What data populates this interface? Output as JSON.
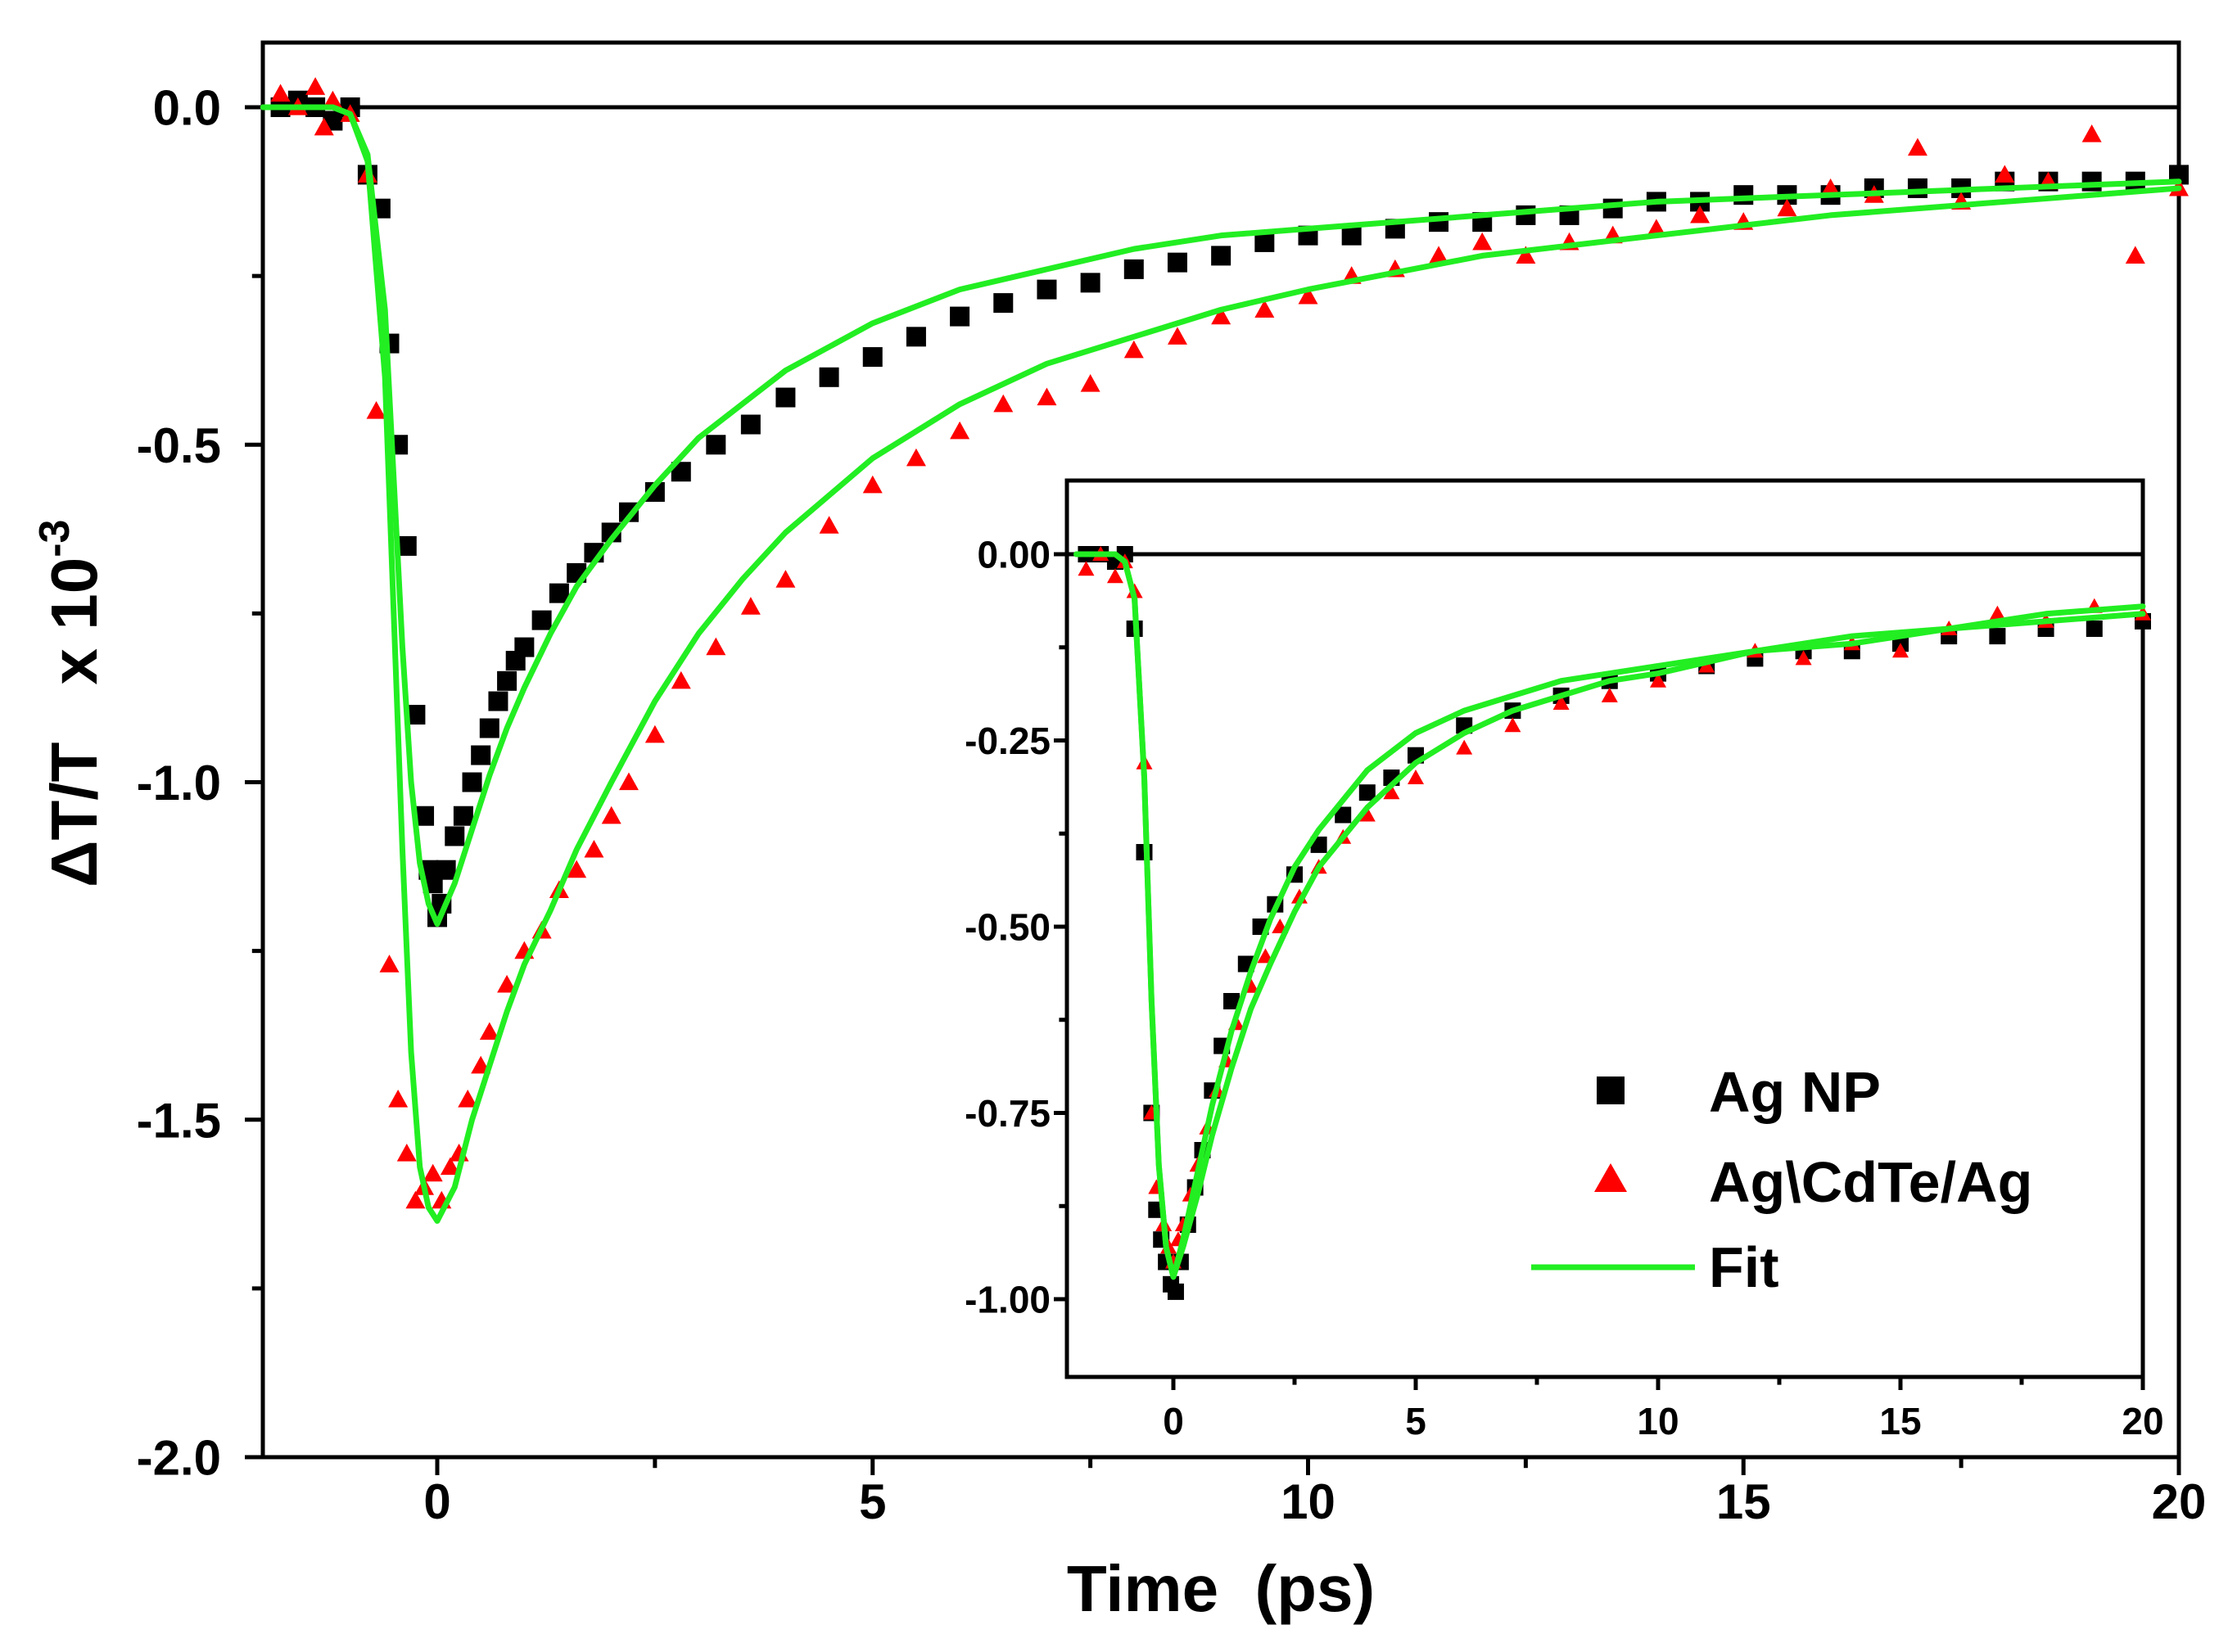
{
  "chart_data": [
    {
      "id": "main",
      "type": "scatter",
      "xlabel": "Time  (ps)",
      "ylabel_main": "ΔT/T",
      "ylabel_factor_base": "x 10",
      "ylabel_factor_exp": "-3",
      "xlim": [
        -2,
        20
      ],
      "ylim": [
        -2.0,
        0.13
      ],
      "xticks": [
        0,
        5,
        10,
        15,
        20
      ],
      "xtick_labels": [
        "0",
        "5",
        "10",
        "15",
        "20"
      ],
      "yticks": [
        0.0,
        -0.5,
        -1.0,
        -1.5,
        -2.0
      ],
      "ytick_labels": [
        "0.0",
        "-0.5",
        "-1.0",
        "-1.5",
        "-2.0"
      ],
      "zero_line": 0,
      "series": [
        {
          "name": "Ag NP",
          "marker": "square",
          "color": "#000000",
          "x": [
            -1.8,
            -1.6,
            -1.4,
            -1.2,
            -1.0,
            -0.8,
            -0.65,
            -0.55,
            -0.45,
            -0.35,
            -0.25,
            -0.15,
            -0.1,
            -0.05,
            0,
            0.05,
            0.1,
            0.2,
            0.3,
            0.4,
            0.5,
            0.6,
            0.7,
            0.8,
            0.9,
            1.0,
            1.2,
            1.4,
            1.6,
            1.8,
            2.0,
            2.2,
            2.5,
            2.8,
            3.2,
            3.6,
            4.0,
            4.5,
            5.0,
            5.5,
            6.0,
            6.5,
            7.0,
            7.5,
            8.0,
            8.5,
            9.0,
            9.5,
            10.0,
            10.5,
            11.0,
            11.5,
            12.0,
            12.5,
            13.0,
            13.5,
            14.0,
            14.5,
            15.0,
            15.5,
            16.0,
            16.5,
            17.0,
            17.5,
            18.0,
            18.5,
            19.0,
            19.5,
            20.0
          ],
          "y": [
            0.0,
            0.01,
            0.0,
            -0.02,
            0.0,
            -0.1,
            -0.15,
            -0.35,
            -0.5,
            -0.65,
            -0.9,
            -1.05,
            -1.13,
            -1.15,
            -1.2,
            -1.18,
            -1.13,
            -1.08,
            -1.05,
            -1.0,
            -0.96,
            -0.92,
            -0.88,
            -0.85,
            -0.82,
            -0.8,
            -0.76,
            -0.72,
            -0.69,
            -0.66,
            -0.63,
            -0.6,
            -0.57,
            -0.54,
            -0.5,
            -0.47,
            -0.43,
            -0.4,
            -0.37,
            -0.34,
            -0.31,
            -0.29,
            -0.27,
            -0.26,
            -0.24,
            -0.23,
            -0.22,
            -0.2,
            -0.19,
            -0.19,
            -0.18,
            -0.17,
            -0.17,
            -0.16,
            -0.16,
            -0.15,
            -0.14,
            -0.14,
            -0.13,
            -0.13,
            -0.13,
            -0.12,
            -0.12,
            -0.12,
            -0.11,
            -0.11,
            -0.11,
            -0.11,
            -0.1
          ]
        },
        {
          "name": "Ag\\CdTe/Ag",
          "marker": "triangle",
          "color": "#ff0000",
          "x": [
            -1.8,
            -1.6,
            -1.4,
            -1.3,
            -1.2,
            -1.0,
            -0.8,
            -0.7,
            -0.55,
            -0.45,
            -0.35,
            -0.25,
            -0.15,
            -0.05,
            0.05,
            0.15,
            0.25,
            0.35,
            0.5,
            0.6,
            0.8,
            1.0,
            1.2,
            1.4,
            1.6,
            1.8,
            2.0,
            2.2,
            2.5,
            2.8,
            3.2,
            3.6,
            4.0,
            4.5,
            5.0,
            5.5,
            6.0,
            6.5,
            7.0,
            7.5,
            8.0,
            8.5,
            9.0,
            9.5,
            10.0,
            10.5,
            11.0,
            11.5,
            12.0,
            12.5,
            13.0,
            13.5,
            14.0,
            14.5,
            15.0,
            15.5,
            16.0,
            16.5,
            17.0,
            17.5,
            18.0,
            18.5,
            19.0,
            19.5,
            20.0
          ],
          "y": [
            0.02,
            0.0,
            0.03,
            -0.03,
            0.01,
            -0.01,
            -0.1,
            -0.45,
            -1.27,
            -1.47,
            -1.55,
            -1.62,
            -1.6,
            -1.58,
            -1.62,
            -1.57,
            -1.55,
            -1.47,
            -1.42,
            -1.37,
            -1.3,
            -1.25,
            -1.22,
            -1.16,
            -1.13,
            -1.1,
            -1.05,
            -1.0,
            -0.93,
            -0.85,
            -0.8,
            -0.74,
            -0.7,
            -0.62,
            -0.56,
            -0.52,
            -0.48,
            -0.44,
            -0.43,
            -0.41,
            -0.36,
            -0.34,
            -0.31,
            -0.3,
            -0.28,
            -0.25,
            -0.24,
            -0.22,
            -0.2,
            -0.22,
            -0.2,
            -0.19,
            -0.18,
            -0.16,
            -0.17,
            -0.15,
            -0.12,
            -0.13,
            -0.06,
            -0.14,
            -0.1,
            -0.11,
            -0.04,
            -0.22,
            -0.12
          ]
        },
        {
          "name": "Fit Ag NP",
          "marker": "line",
          "color": "#22ee22",
          "x": [
            -2,
            -1.2,
            -1.0,
            -0.8,
            -0.6,
            -0.5,
            -0.4,
            -0.3,
            -0.2,
            -0.1,
            0,
            0.2,
            0.4,
            0.6,
            0.8,
            1.0,
            1.3,
            1.6,
            2.0,
            2.5,
            3.0,
            3.5,
            4.0,
            5.0,
            6.0,
            7.0,
            8.0,
            9.0,
            10.0,
            12.0,
            14.0,
            16.0,
            18.0,
            20.0
          ],
          "y": [
            0.0,
            0.0,
            -0.01,
            -0.07,
            -0.3,
            -0.55,
            -0.8,
            -1.0,
            -1.12,
            -1.18,
            -1.21,
            -1.15,
            -1.07,
            -0.99,
            -0.92,
            -0.86,
            -0.78,
            -0.71,
            -0.64,
            -0.56,
            -0.49,
            -0.44,
            -0.39,
            -0.32,
            -0.27,
            -0.24,
            -0.21,
            -0.19,
            -0.18,
            -0.16,
            -0.14,
            -0.13,
            -0.12,
            -0.11
          ]
        },
        {
          "name": "Fit Ag\\CdTe/Ag",
          "marker": "line",
          "color": "#22ee22",
          "x": [
            -2,
            -1.2,
            -1.0,
            -0.8,
            -0.6,
            -0.5,
            -0.4,
            -0.3,
            -0.2,
            -0.1,
            0,
            0.2,
            0.4,
            0.6,
            0.8,
            1.0,
            1.3,
            1.6,
            2.0,
            2.5,
            3.0,
            3.5,
            4.0,
            5.0,
            6.0,
            7.0,
            8.0,
            9.0,
            10.0,
            12.0,
            14.0,
            16.0,
            18.0,
            20.0
          ],
          "y": [
            0.0,
            0.0,
            -0.01,
            -0.08,
            -0.4,
            -0.75,
            -1.1,
            -1.4,
            -1.57,
            -1.63,
            -1.65,
            -1.6,
            -1.5,
            -1.42,
            -1.34,
            -1.27,
            -1.19,
            -1.1,
            -1.0,
            -0.88,
            -0.78,
            -0.7,
            -0.63,
            -0.52,
            -0.44,
            -0.38,
            -0.34,
            -0.3,
            -0.27,
            -0.22,
            -0.19,
            -0.16,
            -0.14,
            -0.12
          ]
        }
      ]
    },
    {
      "id": "inset",
      "type": "scatter",
      "xlim": [
        -2,
        20
      ],
      "ylim": [
        -1.1,
        0.05
      ],
      "xticks": [
        0,
        5,
        10,
        15,
        20
      ],
      "xtick_labels": [
        "0",
        "5",
        "10",
        "15",
        "20"
      ],
      "yticks": [
        0.0,
        -0.25,
        -0.5,
        -0.75,
        -1.0
      ],
      "ytick_labels": [
        "0.00",
        "-0.25",
        "-0.50",
        "-0.75",
        "-1.00"
      ],
      "zero_line": 0,
      "series": [
        {
          "name": "Ag NP",
          "marker": "square",
          "color": "#000000",
          "x": [
            -1.8,
            -1.5,
            -1.2,
            -1.0,
            -0.8,
            -0.6,
            -0.45,
            -0.35,
            -0.25,
            -0.15,
            -0.05,
            0.05,
            0.15,
            0.3,
            0.45,
            0.6,
            0.8,
            1.0,
            1.2,
            1.5,
            1.8,
            2.1,
            2.5,
            3.0,
            3.5,
            4.0,
            4.5,
            5.0,
            6.0,
            7.0,
            8.0,
            9.0,
            10.0,
            11.0,
            12.0,
            13.0,
            14.0,
            15.0,
            16.0,
            17.0,
            18.0,
            19.0,
            20.0
          ],
          "y": [
            0.0,
            0.0,
            -0.01,
            0.0,
            -0.1,
            -0.4,
            -0.75,
            -0.88,
            -0.92,
            -0.95,
            -0.98,
            -0.99,
            -0.95,
            -0.9,
            -0.85,
            -0.8,
            -0.72,
            -0.66,
            -0.6,
            -0.55,
            -0.5,
            -0.47,
            -0.43,
            -0.39,
            -0.35,
            -0.32,
            -0.3,
            -0.27,
            -0.23,
            -0.21,
            -0.19,
            -0.17,
            -0.16,
            -0.15,
            -0.14,
            -0.13,
            -0.13,
            -0.12,
            -0.11,
            -0.11,
            -0.1,
            -0.1,
            -0.09
          ]
        },
        {
          "name": "Ag\\CdTe/Ag",
          "marker": "triangle",
          "color": "#ff0000",
          "x": [
            -1.8,
            -1.5,
            -1.2,
            -1.0,
            -0.8,
            -0.6,
            -0.45,
            -0.35,
            -0.2,
            -0.1,
            0,
            0.1,
            0.2,
            0.35,
            0.5,
            0.7,
            0.9,
            1.1,
            1.3,
            1.6,
            1.9,
            2.2,
            2.6,
            3.0,
            3.5,
            4.0,
            4.5,
            5.0,
            6.0,
            7.0,
            8.0,
            9.0,
            10.0,
            11.0,
            12.0,
            13.0,
            14.0,
            15.0,
            16.0,
            17.0,
            18.0,
            19.0,
            20.0
          ],
          "y": [
            -0.02,
            0.0,
            -0.03,
            -0.01,
            -0.05,
            -0.28,
            -0.75,
            -0.85,
            -0.9,
            -0.93,
            -0.95,
            -0.92,
            -0.9,
            -0.86,
            -0.82,
            -0.77,
            -0.72,
            -0.68,
            -0.63,
            -0.58,
            -0.54,
            -0.5,
            -0.46,
            -0.42,
            -0.38,
            -0.35,
            -0.32,
            -0.3,
            -0.26,
            -0.23,
            -0.2,
            -0.19,
            -0.17,
            -0.15,
            -0.13,
            -0.14,
            -0.12,
            -0.13,
            -0.1,
            -0.08,
            -0.09,
            -0.07,
            -0.08
          ]
        },
        {
          "name": "Fit Ag NP",
          "marker": "line",
          "color": "#22ee22",
          "x": [
            -2,
            -1.2,
            -1.0,
            -0.8,
            -0.6,
            -0.45,
            -0.3,
            -0.15,
            0,
            0.2,
            0.5,
            0.8,
            1.2,
            1.6,
            2.0,
            2.5,
            3.0,
            3.5,
            4.0,
            5.0,
            6.0,
            7.0,
            8.0,
            9.0,
            10.0,
            12.0,
            14.0,
            16.0,
            18.0,
            20.0
          ],
          "y": [
            0.0,
            0.0,
            -0.01,
            -0.06,
            -0.3,
            -0.6,
            -0.82,
            -0.93,
            -0.97,
            -0.92,
            -0.83,
            -0.74,
            -0.64,
            -0.56,
            -0.49,
            -0.42,
            -0.37,
            -0.33,
            -0.29,
            -0.24,
            -0.21,
            -0.19,
            -0.17,
            -0.16,
            -0.15,
            -0.13,
            -0.12,
            -0.1,
            -0.09,
            -0.08
          ]
        },
        {
          "name": "Fit Ag\\CdTe/Ag",
          "marker": "line",
          "color": "#22ee22",
          "x": [
            -2,
            -1.2,
            -1.0,
            -0.8,
            -0.6,
            -0.45,
            -0.3,
            -0.15,
            0,
            0.2,
            0.5,
            0.8,
            1.2,
            1.6,
            2.0,
            2.5,
            3.0,
            3.5,
            4.0,
            5.0,
            6.0,
            7.0,
            8.0,
            9.0,
            10.0,
            12.0,
            14.0,
            16.0,
            18.0,
            20.0
          ],
          "y": [
            0.0,
            0.0,
            -0.01,
            -0.06,
            -0.3,
            -0.6,
            -0.82,
            -0.93,
            -0.97,
            -0.93,
            -0.86,
            -0.78,
            -0.69,
            -0.61,
            -0.55,
            -0.48,
            -0.42,
            -0.38,
            -0.34,
            -0.28,
            -0.24,
            -0.21,
            -0.19,
            -0.17,
            -0.16,
            -0.13,
            -0.11,
            -0.1,
            -0.08,
            -0.07
          ]
        }
      ]
    }
  ],
  "legend": {
    "items": [
      {
        "label": "Ag NP",
        "marker": "square",
        "color": "#000000"
      },
      {
        "label": "Ag\\CdTe/Ag",
        "marker": "triangle",
        "color": "#ff0000"
      },
      {
        "label": "Fit",
        "marker": "line",
        "color": "#22ee22"
      }
    ]
  }
}
